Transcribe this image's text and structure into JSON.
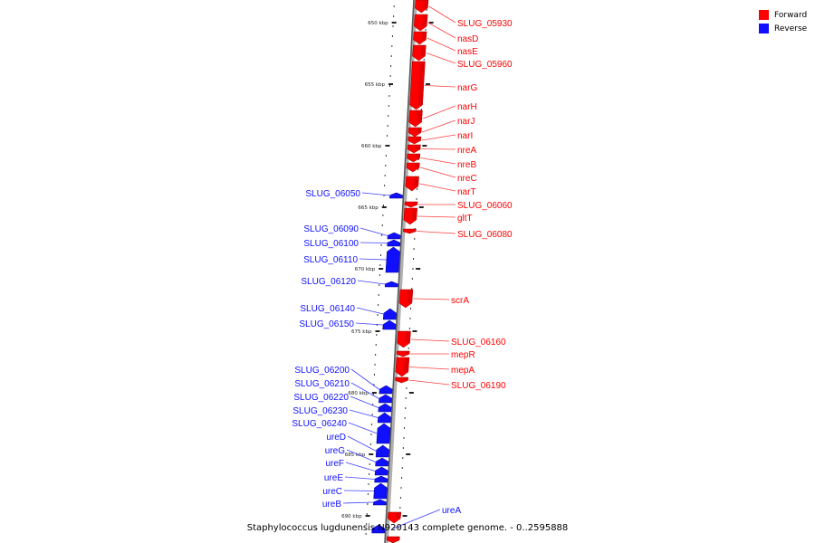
{
  "legend": [
    {
      "label": "Forward",
      "color": "#ff0000"
    },
    {
      "label": "Reverse",
      "color": "#1010ff"
    }
  ],
  "caption": "Staphylococcus lugdunensis N920143 complete genome. - 0..2595888",
  "colors": {
    "forward": "#ff0000",
    "reverse": "#1010ff",
    "backbone": "#7a7a7a",
    "label_line": "#ff4040"
  },
  "ticks": [
    {
      "label": "650 kbp"
    },
    {
      "label": "655 kbp"
    },
    {
      "label": "660 kbp"
    },
    {
      "label": "665 kbp"
    },
    {
      "label": "670 kbp"
    },
    {
      "label": "675 kbp"
    },
    {
      "label": "680 kbp"
    },
    {
      "label": "685 kbp"
    },
    {
      "label": "690 kbp"
    }
  ],
  "forward_genes": [
    "SLUG_05930",
    "nasD",
    "nasE",
    "SLUG_05960",
    "narG",
    "narH",
    "narJ",
    "narI",
    "nreA",
    "nreB",
    "nreC",
    "narT",
    "SLUG_06060",
    "gltT",
    "SLUG_06080",
    "scrA",
    "SLUG_06160",
    "mepR",
    "mepA",
    "SLUG_06190"
  ],
  "reverse_genes": [
    "SLUG_06050",
    "SLUG_06090",
    "SLUG_06100",
    "SLUG_06110",
    "SLUG_06120",
    "SLUG_06140",
    "SLUG_06150",
    "SLUG_06200",
    "SLUG_06210",
    "SLUG_06220",
    "SLUG_06230",
    "SLUG_06240",
    "ureD",
    "ureG",
    "ureF",
    "ureE",
    "ureC",
    "ureB",
    "ureA"
  ]
}
